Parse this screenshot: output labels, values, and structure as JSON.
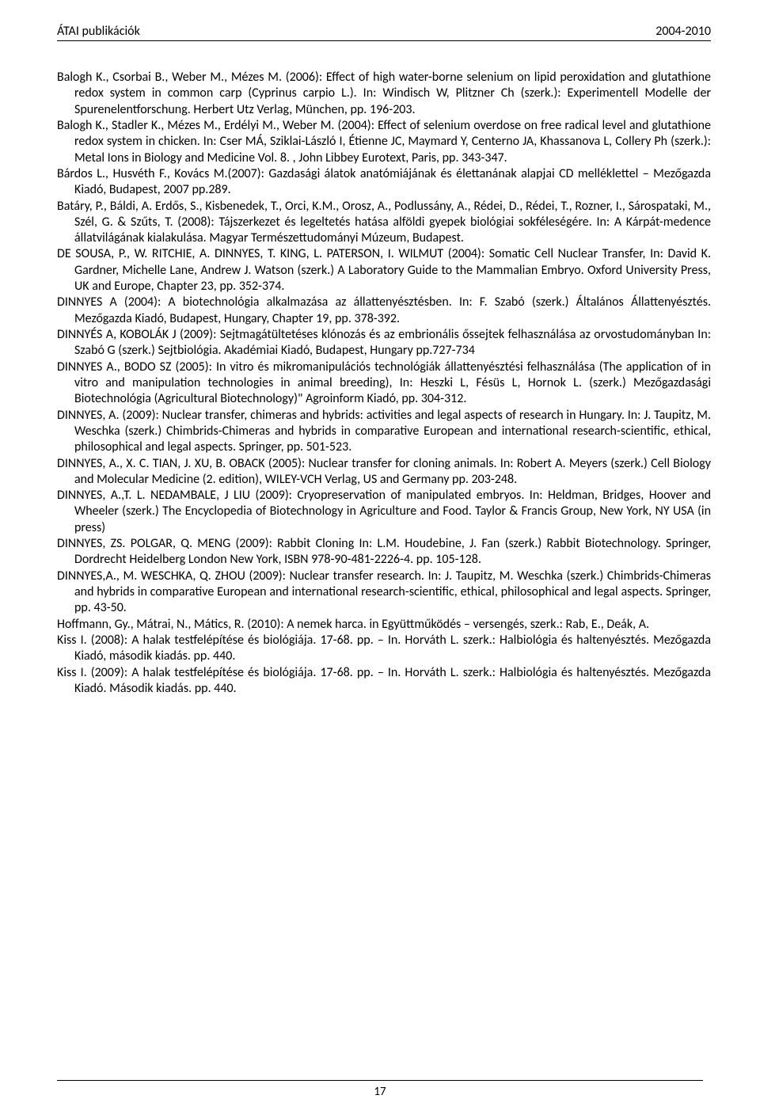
{
  "header": {
    "left": "ÁTAI publikációk",
    "right": "2004-2010"
  },
  "paragraphs": [
    "Balogh K., Csorbai B., Weber M., Mézes M. (2006): Effect of high water-borne selenium on lipid peroxidation and glutathione redox system in common carp (Cyprinus carpio L.). In: Windisch W, Plitzner Ch (szerk.): Experimentell Modelle der Spurenelentforschung. Herbert Utz Verlag, München, pp. 196-203.",
    "Balogh K., Stadler K., Mézes M., Erdélyi M., Weber M. (2004): Effect of selenium overdose on free radical level and glutathione redox system in chicken. In: Cser MÁ, Sziklai-László I, Étienne JC, Maymard Y, Centerno JA, Khassanova L, Collery Ph (szerk.): Metal Ions in Biology and Medicine Vol. 8. , John Libbey Eurotext, Paris, pp. 343-347.",
    "Bárdos L., Husvéth F., Kovács M.(2007): Gazdasági álatok anatómiájának és élettanának alapjai CD melléklettel – Mezőgazda Kiadó, Budapest, 2007 pp.289.",
    "Batáry, P., Báldi, A. Erdős, S., Kisbenedek, T., Orci, K.M., Orosz, A., Podlussány, A., Rédei, D., Rédei, T., Rozner, I., Sárospataki, M., Szél, G. & Szűts, T. (2008): Tájszerkezet és legeltetés hatása alföldi gyepek biológiai sokféleségére. In: A Kárpát-medence állatvilágának kialakulása. Magyar Természettudományi Múzeum, Budapest.",
    "DE SOUSA, P., W. RITCHIE, A. DINNYES, T. KING, L. PATERSON, I. WILMUT (2004): Somatic Cell Nuclear Transfer, In: David K. Gardner, Michelle Lane, Andrew J. Watson (szerk.) A Laboratory Guide to the Mammalian Embryo. Oxford University Press, UK and Europe, Chapter 23, pp. 352-374.",
    "DINNYES A (2004): A biotechnológia alkalmazása az állattenyésztésben. In: F. Szabó (szerk.) Általános Állattenyésztés. Mezőgazda Kiadó, Budapest, Hungary, Chapter 19, pp. 378-392.",
    "DINNYÉS A, KOBOLÁK J (2009): Sejtmagátültetéses klónozás és az embrionális őssejtek felhasználása az orvostudományban In: Szabó G (szerk.) Sejtbiológia. Akadémiai Kiadó, Budapest, Hungary pp.727-734",
    "DINNYES A., BODO SZ (2005): In vitro és mikromanipulációs technológiák állattenyésztési felhasználása (The application of in vitro and manipulation technologies in animal breeding), In: Heszki L, Fésüs L, Hornok L. (szerk.) Mezőgazdasági Biotechnológia (Agricultural Biotechnology)\" Agroinform Kiadó, pp. 304-312.",
    "DINNYES, A. (2009): Nuclear transfer, chimeras and hybrids: activities and legal aspects of research in Hungary. In: J. Taupitz, M. Weschka (szerk.) Chimbrids-Chimeras and hybrids in comparative European and international research-scientific, ethical, philosophical and legal aspects. Springer, pp. 501-523.",
    "DINNYES, A., X. C. TIAN, J. XU, B. OBACK (2005): Nuclear transfer for cloning animals. In: Robert A. Meyers (szerk.) Cell Biology and Molecular Medicine (2. edition), WILEY-VCH Verlag, US and Germany pp. 203-248.",
    "DINNYES, A.,T. L. NEDAMBALE, J LIU (2009): Cryopreservation of manipulated embryos. In: Heldman, Bridges, Hoover and Wheeler (szerk.) The Encyclopedia of Biotechnology in Agriculture and Food. Taylor & Francis Group, New York, NY USA (in press)",
    "DINNYES, ZS. POLGAR, Q. MENG (2009): Rabbit Cloning In: L.M. Houdebine, J. Fan (szerk.) Rabbit Biotechnology. Springer, Dordrecht Heidelberg London New York,  ISBN 978-90-481-2226-4. pp. 105-128.",
    "DINNYES,A., M. WESCHKA, Q. ZHOU (2009): Nuclear transfer research. In: J. Taupitz, M. Weschka (szerk.) Chimbrids-Chimeras and hybrids in comparative European and international research-scientific, ethical, philosophical and legal aspects. Springer, pp. 43-50.",
    "Hoffmann, Gy., Mátrai, N., Mátics, R. (2010): A nemek harca. in Együttműködés – versengés, szerk.: Rab, E., Deák, A.",
    "Kiss I. (2008): A halak testfelépítése és biológiája. 17-68. pp. – In. Horváth L. szerk.: Halbiológia és haltenyésztés. Mezőgazda Kiadó, második kiadás. pp. 440.",
    "Kiss I. (2009): A halak testfelépítése és biológiája. 17-68. pp. – In. Horváth L. szerk.: Halbiológia és haltenyésztés. Mezőgazda Kiadó. Második kiadás. pp. 440."
  ],
  "page_number": "17"
}
